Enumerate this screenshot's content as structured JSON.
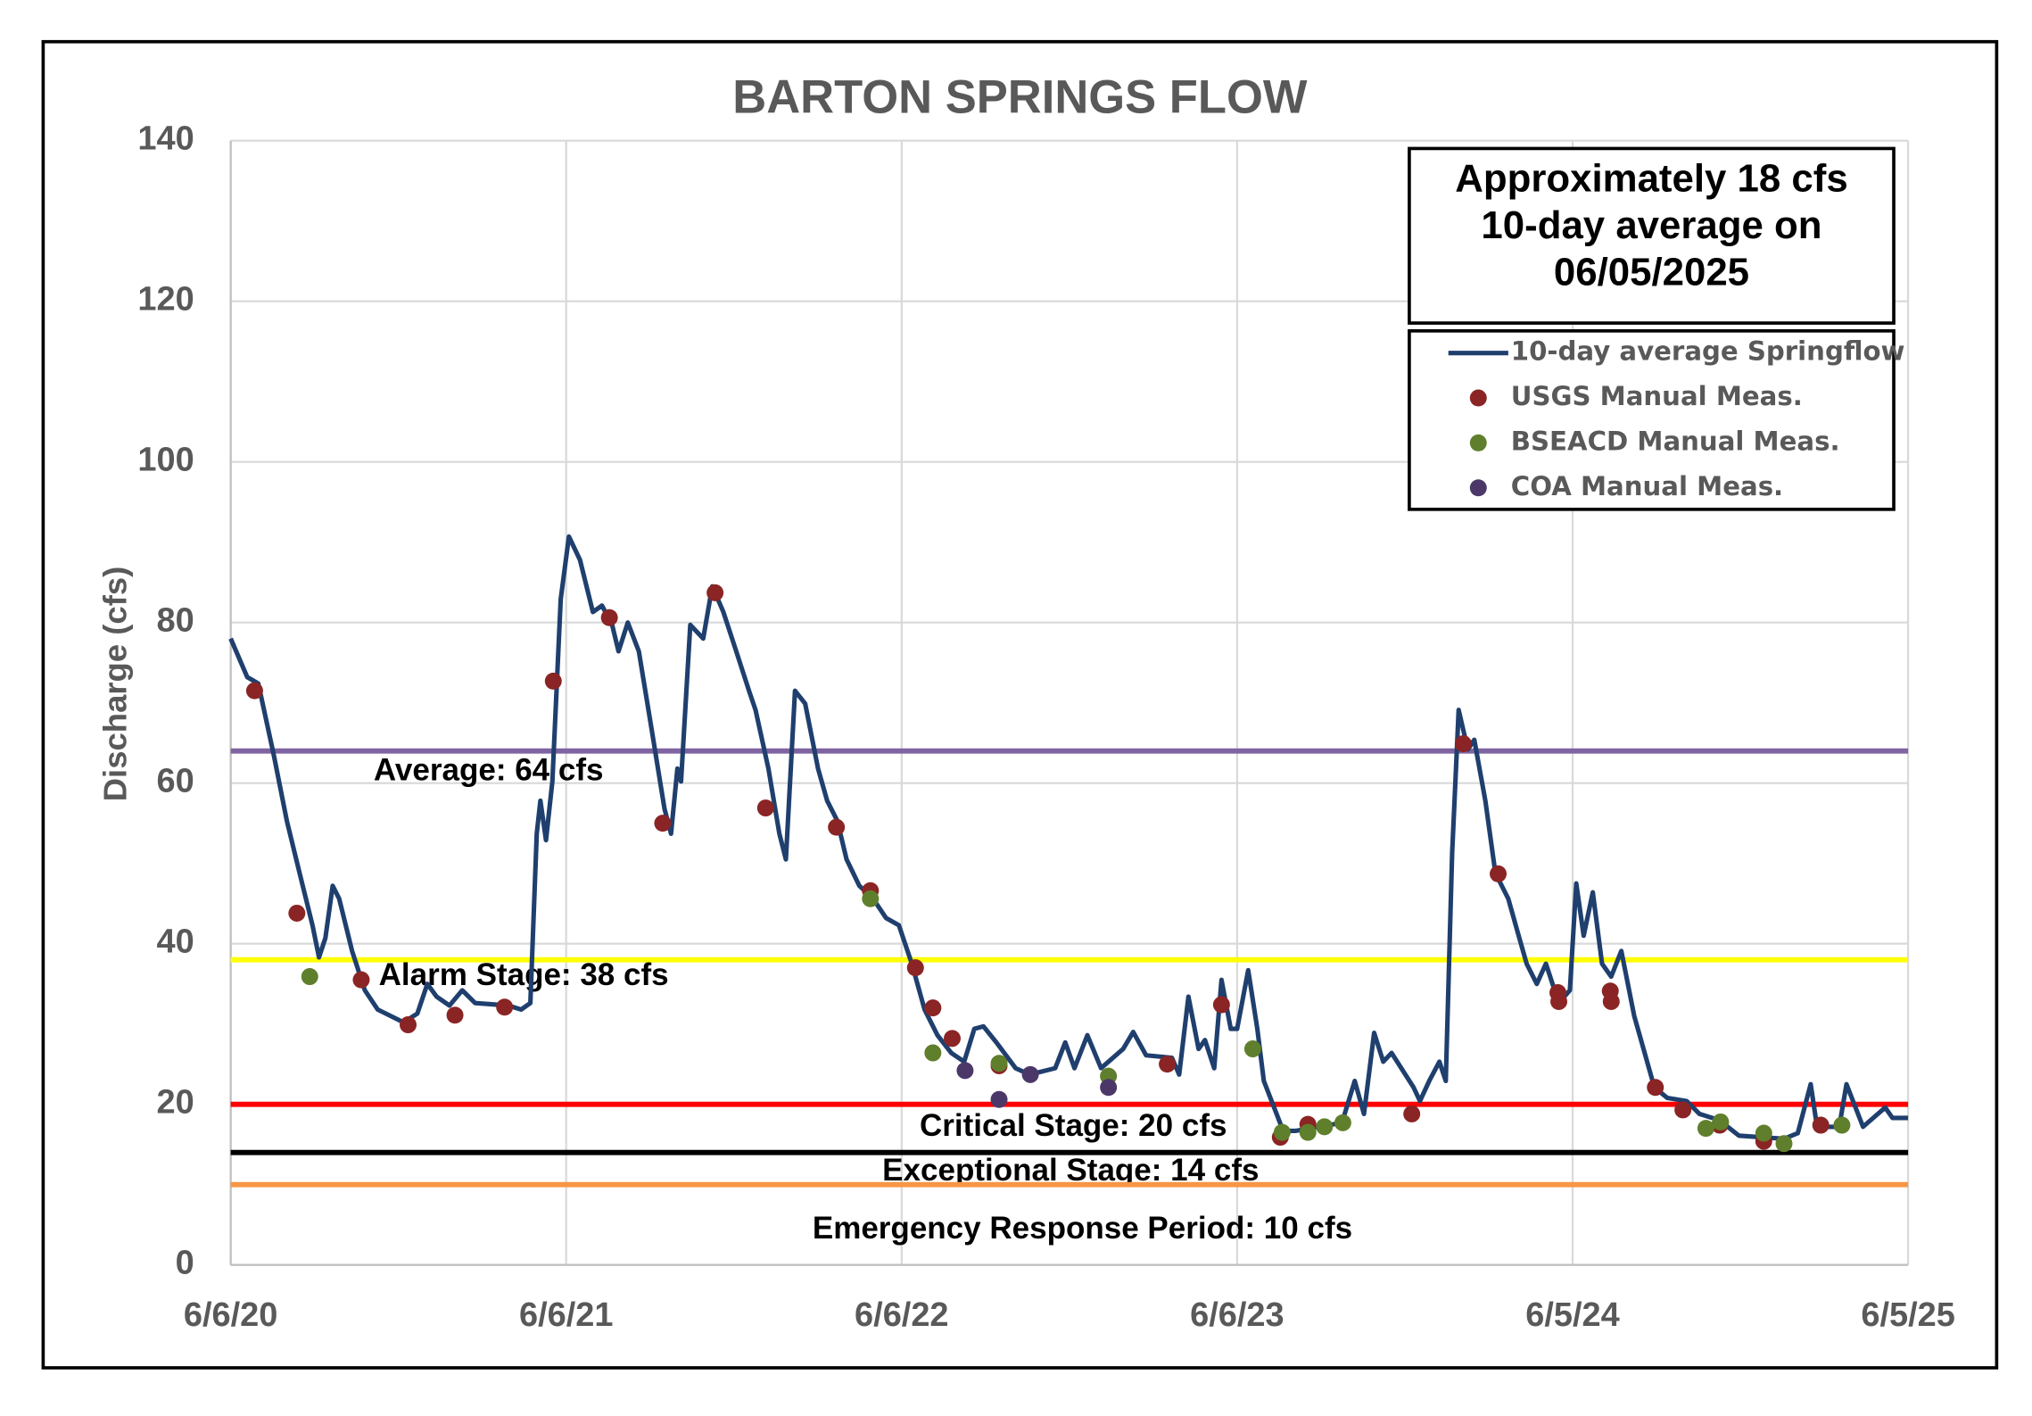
{
  "chart_data": {
    "type": "line",
    "title": "BARTON SPRINGS FLOW",
    "y_label": "Discharge (cfs)",
    "xlim": [
      "2020-06-06",
      "2025-06-05"
    ],
    "xticks": [
      {
        "value": "2020-06-06",
        "label": "6/6/20"
      },
      {
        "value": "2021-06-06",
        "label": "6/6/21"
      },
      {
        "value": "2022-06-06",
        "label": "6/6/22"
      },
      {
        "value": "2023-06-06",
        "label": "6/6/23"
      },
      {
        "value": "2024-06-05",
        "label": "6/5/24"
      },
      {
        "value": "2025-06-05",
        "label": "6/5/25"
      }
    ],
    "ylim": [
      0,
      140
    ],
    "yticks": [
      0,
      20,
      40,
      60,
      80,
      100,
      120,
      140
    ],
    "grid": true,
    "legend": "upper right",
    "annotation": [
      "Approximately 18 cfs",
      "10-day average on",
      "06/05/2025"
    ],
    "reference_lines": [
      {
        "label": "Average: 64 cfs",
        "value": 64,
        "color": "#8064a2"
      },
      {
        "label": "Alarm Stage: 38 cfs",
        "value": 38,
        "color": "#ffff00"
      },
      {
        "label": "Critical Stage: 20 cfs",
        "value": 20,
        "color": "#ff0000"
      },
      {
        "label": "Exceptional Stage: 14 cfs",
        "value": 14,
        "color": "#000000"
      },
      {
        "label": "Emergency Response Period: 10 cfs",
        "value": 10,
        "color": "#f79646"
      }
    ],
    "series": [
      {
        "name": "10-day average Springflow",
        "color": "#1f3f6e",
        "type": "line",
        "x": [
          "2020-06-06",
          "2020-06-24",
          "2020-07-06",
          "2020-07-23",
          "2020-08-06",
          "2020-08-20",
          "2020-09-03",
          "2020-09-10",
          "2020-09-17",
          "2020-09-25",
          "2020-10-02",
          "2020-10-16",
          "2020-10-30",
          "2020-11-13",
          "2020-12-11",
          "2020-12-26",
          "2021-01-06",
          "2021-01-16",
          "2021-01-30",
          "2021-02-13",
          "2021-02-27",
          "2021-04-04",
          "2021-04-18",
          "2021-04-28",
          "2021-05-05",
          "2021-05-09",
          "2021-05-15",
          "2021-05-22",
          "2021-05-31",
          "2021-06-09",
          "2021-06-21",
          "2021-07-05",
          "2021-07-15",
          "2021-07-26",
          "2021-08-02",
          "2021-08-12",
          "2021-08-24",
          "2021-09-07",
          "2021-09-21",
          "2021-09-28",
          "2021-10-05",
          "2021-10-09",
          "2021-10-19",
          "2021-11-02",
          "2021-11-12",
          "2021-11-24",
          "2021-12-08",
          "2021-12-22",
          "2021-12-29",
          "2022-01-12",
          "2022-01-24",
          "2022-01-31",
          "2022-02-10",
          "2022-02-21",
          "2022-03-07",
          "2022-03-17",
          "2022-03-28",
          "2022-04-07",
          "2022-04-21",
          "2022-05-06",
          "2022-05-20",
          "2022-06-03",
          "2022-06-17",
          "2022-07-01",
          "2022-07-15",
          "2022-07-30",
          "2022-08-13",
          "2022-08-24",
          "2022-09-03",
          "2022-09-17",
          "2022-10-08",
          "2022-10-23",
          "2022-11-20",
          "2022-12-01",
          "2022-12-11",
          "2022-12-25",
          "2023-01-09",
          "2023-02-02",
          "2023-02-13",
          "2023-02-27",
          "2023-03-27",
          "2023-04-04",
          "2023-04-14",
          "2023-04-25",
          "2023-05-02",
          "2023-05-12",
          "2023-05-20",
          "2023-05-30",
          "2023-06-06",
          "2023-06-18",
          "2023-06-28",
          "2023-07-05",
          "2023-07-19",
          "2023-07-26",
          "2023-08-09",
          "2023-09-28",
          "2023-10-12",
          "2023-10-22",
          "2023-11-02",
          "2023-11-12",
          "2023-11-21",
          "2023-12-15",
          "2023-12-22",
          "2024-01-01",
          "2024-01-12",
          "2024-01-19",
          "2024-01-26",
          "2024-02-02",
          "2024-02-12",
          "2024-02-19",
          "2024-03-02",
          "2024-03-13",
          "2024-03-27",
          "2024-04-06",
          "2024-04-16",
          "2024-04-27",
          "2024-05-07",
          "2024-05-21",
          "2024-06-02",
          "2024-06-09",
          "2024-06-17",
          "2024-06-27",
          "2024-07-07",
          "2024-07-17",
          "2024-07-28",
          "2024-08-11",
          "2024-09-02",
          "2024-09-16",
          "2024-10-07",
          "2024-10-21",
          "2024-11-12",
          "2024-12-03",
          "2025-01-21",
          "2025-02-05",
          "2025-02-19",
          "2025-02-26",
          "2025-03-22",
          "2025-03-30",
          "2025-04-17",
          "2025-05-11",
          "2025-05-19",
          "2025-06-05"
        ],
        "values": [
          78.0,
          73.2,
          72.4,
          63.4,
          55.3,
          48.8,
          42.3,
          38.3,
          40.7,
          47.2,
          45.6,
          39.1,
          34.2,
          31.8,
          30.2,
          31.3,
          35.0,
          33.4,
          32.3,
          34.2,
          32.6,
          32.3,
          31.8,
          32.6,
          53.7,
          57.8,
          52.9,
          60.2,
          82.9,
          90.7,
          87.8,
          81.3,
          82.1,
          79.7,
          76.4,
          80.0,
          76.4,
          66.7,
          56.8,
          53.7,
          61.8,
          60.2,
          79.7,
          78.0,
          84.5,
          81.3,
          76.4,
          71.5,
          69.1,
          61.8,
          53.7,
          50.5,
          71.5,
          69.9,
          61.8,
          57.8,
          55.3,
          50.5,
          47.2,
          45.6,
          43.2,
          42.3,
          37.5,
          31.8,
          28.6,
          26.4,
          25.3,
          29.4,
          29.7,
          27.7,
          24.5,
          23.7,
          24.5,
          27.7,
          24.5,
          28.6,
          24.5,
          26.9,
          29.0,
          26.1,
          25.8,
          23.7,
          33.4,
          26.9,
          28.0,
          24.5,
          35.5,
          29.4,
          29.4,
          36.7,
          29.4,
          22.9,
          18.8,
          16.7,
          16.7,
          17.7,
          22.9,
          18.8,
          28.9,
          25.3,
          26.4,
          22.1,
          20.4,
          22.9,
          25.3,
          22.9,
          51.3,
          69.1,
          64.2,
          65.4,
          57.8,
          48.8,
          45.6,
          41.5,
          37.5,
          35.0,
          37.5,
          32.6,
          34.2,
          47.5,
          41.0,
          46.4,
          37.5,
          35.9,
          39.1,
          31.0,
          22.1,
          20.8,
          20.4,
          18.8,
          18.0,
          16.1,
          15.7,
          16.4,
          22.5,
          17.2,
          17.2,
          22.5,
          17.2,
          19.6,
          18.3,
          18.3
        ]
      },
      {
        "name": "USGS Manual Meas.",
        "color": "#8b2424",
        "type": "scatter",
        "x": [
          "2020-07-02",
          "2020-08-17",
          "2020-10-26",
          "2020-12-16",
          "2021-02-05",
          "2021-03-31",
          "2021-05-23",
          "2021-07-23",
          "2021-09-19",
          "2021-11-15",
          "2022-01-09",
          "2022-03-27",
          "2022-05-03",
          "2022-06-21",
          "2022-07-10",
          "2022-07-31",
          "2022-09-20",
          "2023-03-22",
          "2023-05-20",
          "2023-07-23",
          "2023-08-22",
          "2023-12-13",
          "2024-02-07",
          "2024-03-16",
          "2024-05-20",
          "2024-05-21",
          "2024-07-16",
          "2024-07-17",
          "2024-09-03",
          "2024-10-03",
          "2024-11-12",
          "2024-12-30",
          "2025-03-02"
        ],
        "values": [
          71.5,
          43.8,
          35.5,
          29.9,
          31.1,
          32.1,
          72.7,
          80.6,
          55.0,
          83.7,
          56.9,
          54.5,
          46.6,
          37.0,
          32.0,
          28.2,
          24.8,
          25.0,
          32.4,
          15.9,
          17.5,
          18.8,
          64.9,
          48.7,
          33.9,
          32.8,
          34.1,
          32.8,
          22.1,
          19.3,
          17.4,
          15.4,
          17.4
        ]
      },
      {
        "name": "BSEACD Manual Meas.",
        "color": "#5f7f2c",
        "type": "scatter",
        "x": [
          "2020-08-31",
          "2022-05-03",
          "2022-07-10",
          "2022-09-20",
          "2023-01-17",
          "2023-06-23",
          "2023-07-25",
          "2023-08-22",
          "2023-09-09",
          "2023-09-29",
          "2024-10-28",
          "2024-11-13",
          "2024-12-30",
          "2025-01-21",
          "2025-03-25"
        ],
        "values": [
          35.9,
          45.6,
          26.4,
          25.1,
          23.5,
          26.9,
          16.5,
          16.5,
          17.2,
          17.7,
          17.0,
          17.8,
          16.4,
          15.1,
          17.4
        ]
      },
      {
        "name": "COA Manual Meas.",
        "color": "#4b3868",
        "type": "scatter",
        "x": [
          "2022-08-14",
          "2022-09-20",
          "2022-10-24",
          "2023-01-17"
        ],
        "values": [
          24.2,
          20.6,
          23.7,
          22.1
        ]
      }
    ]
  }
}
